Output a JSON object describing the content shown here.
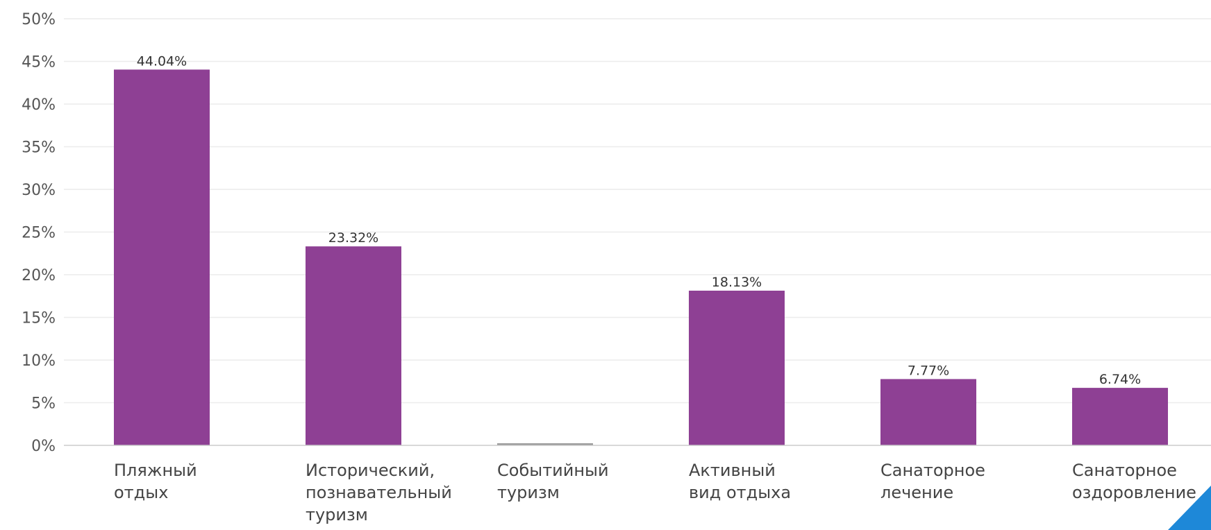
{
  "chart_data": {
    "type": "bar",
    "title": "",
    "xlabel": "",
    "ylabel": "",
    "categories": [
      [
        "Пляжный",
        "отдых"
      ],
      [
        "Исторический,",
        "познавательный",
        "туризм"
      ],
      [
        "Событийный",
        "туризм"
      ],
      [
        "Активный",
        "вид отдыха"
      ],
      [
        "Санаторное",
        "лечение"
      ],
      [
        "Санаторное",
        "оздоровление"
      ]
    ],
    "values": [
      44.04,
      23.32,
      0,
      18.13,
      7.77,
      6.74
    ],
    "data_labels": [
      "44.04%",
      "23.32%",
      "",
      "18.13%",
      "7.77%",
      "6.74%"
    ],
    "y_ticks": [
      "0%",
      "5%",
      "10%",
      "15%",
      "20%",
      "25%",
      "30%",
      "35%",
      "40%",
      "45%",
      "50%"
    ],
    "ylim": [
      0,
      50
    ],
    "grid": true,
    "legend": "none",
    "colors": {
      "bar": "#8e4094",
      "zero_bar": "#999999",
      "corner_accent": "#1e88d8"
    }
  }
}
